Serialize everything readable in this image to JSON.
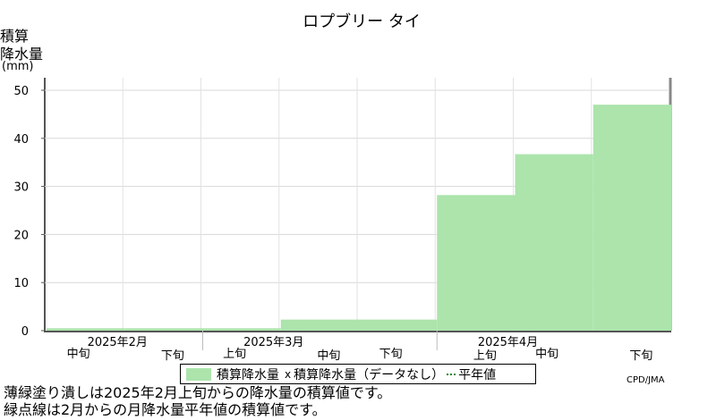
{
  "chart_data": {
    "type": "bar",
    "title": "ロプブリー タイ",
    "ylabel": [
      "積算",
      "降水量",
      "(mm)"
    ],
    "ylim": [
      0,
      50
    ],
    "yticks": [
      0,
      10,
      20,
      30,
      40,
      50
    ],
    "periods": [
      {
        "month": "",
        "dekad": "中旬"
      },
      {
        "month": "2025年2月",
        "dekad": "下旬"
      },
      {
        "month": "",
        "dekad": "上旬"
      },
      {
        "month": "",
        "dekad": "中旬"
      },
      {
        "month": "2025年3月",
        "dekad": "下旬"
      },
      {
        "month": "",
        "dekad": "上旬"
      },
      {
        "month": "",
        "dekad": "中旬"
      },
      {
        "month": "2025年4月",
        "dekad": "下旬"
      }
    ],
    "month_labels": [
      {
        "label": "2025年2月",
        "at": 1
      },
      {
        "label": "2025年3月",
        "at": 3
      },
      {
        "label": "2025年4月",
        "at": 6
      }
    ],
    "series": [
      {
        "name": "積算降水量",
        "values": [
          0.5,
          0.5,
          0.5,
          2.3,
          2.3,
          28.2,
          36.7,
          47.0
        ],
        "color": "#ace4ac"
      }
    ],
    "legend": {
      "observed": "積算降水量",
      "marker": "x",
      "missing": "積算降水量（データなし）",
      "normal": "平年値"
    },
    "grid": true
  },
  "notes": {
    "line1": "薄緑塗り潰しは2025年2月上旬からの降水量の積算値です。",
    "line2": "緑点線は2月からの月降水量平年値の積算値です。"
  },
  "credit": "CPD/JMA"
}
